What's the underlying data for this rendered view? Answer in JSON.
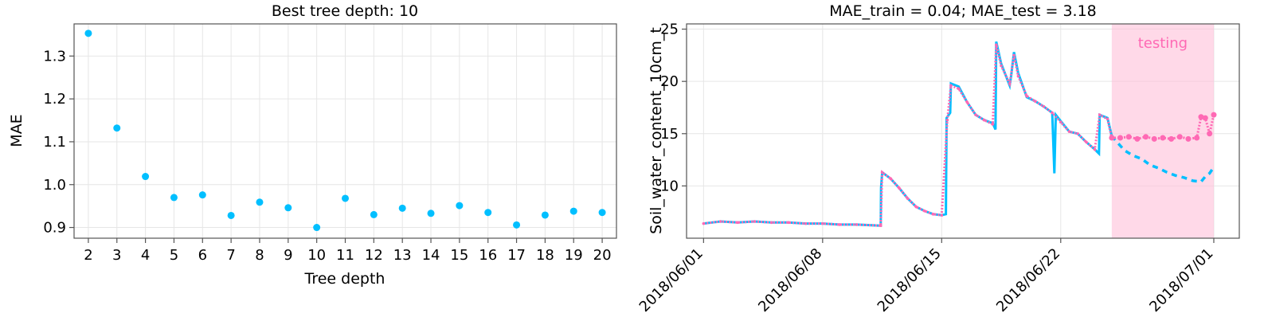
{
  "chart_data": [
    {
      "type": "scatter",
      "title": "Best tree depth: 10",
      "xlabel": "Tree depth",
      "ylabel": "MAE",
      "xlim": [
        1.5,
        20.5
      ],
      "ylim": [
        0.875,
        1.375
      ],
      "x_ticks": [
        "2",
        "3",
        "4",
        "5",
        "6",
        "7",
        "8",
        "9",
        "10",
        "11",
        "12",
        "13",
        "14",
        "15",
        "16",
        "17",
        "18",
        "19",
        "20"
      ],
      "y_ticks": [
        "0.9",
        "1.0",
        "1.1",
        "1.2",
        "1.3"
      ],
      "grid": true,
      "color": "#00bfff",
      "x": [
        2,
        3,
        4,
        5,
        6,
        7,
        8,
        9,
        10,
        11,
        12,
        13,
        14,
        15,
        16,
        17,
        18,
        19,
        20
      ],
      "y": [
        1.353,
        1.132,
        1.019,
        0.97,
        0.976,
        0.928,
        0.959,
        0.946,
        0.9,
        0.968,
        0.93,
        0.945,
        0.933,
        0.951,
        0.935,
        0.906,
        0.929,
        0.938,
        0.935
      ]
    },
    {
      "type": "line",
      "title": "MAE_train = 0.04; MAE_test = 3.18",
      "xlabel": "",
      "ylabel": "Soil_water_content_10cm_t",
      "xlim": [
        "2018-05-31T00:00",
        "2018-07-02T12:00"
      ],
      "ylim": [
        5,
        25.5
      ],
      "x_ticks": [
        "2018/06/01",
        "2018/06/08",
        "2018/06/15",
        "2018/06/22",
        "2018/07/01"
      ],
      "y_ticks": [
        "10",
        "15",
        "20",
        "25"
      ],
      "grid": true,
      "testing_window": {
        "start": "2018-06-25T00:00",
        "end": "2018-07-01T00:00",
        "label": "testing",
        "color": "#ffc0d9"
      },
      "series": [
        {
          "color": "#00bfff",
          "style": "observed, solid in training, dashed in testing",
          "points": [
            [
              "2018-06-01T00:00",
              6.4
            ],
            [
              "2018-06-02T00:00",
              6.6
            ],
            [
              "2018-06-03T00:00",
              6.5
            ],
            [
              "2018-06-04T00:00",
              6.6
            ],
            [
              "2018-06-05T00:00",
              6.5
            ],
            [
              "2018-06-06T00:00",
              6.5
            ],
            [
              "2018-06-07T00:00",
              6.4
            ],
            [
              "2018-06-08T00:00",
              6.4
            ],
            [
              "2018-06-09T00:00",
              6.3
            ],
            [
              "2018-06-10T00:00",
              6.3
            ],
            [
              "2018-06-11T10:00",
              6.2
            ],
            [
              "2018-06-11T10:30",
              9.8
            ],
            [
              "2018-06-11T12:00",
              11.3
            ],
            [
              "2018-06-12T00:00",
              10.7
            ],
            [
              "2018-06-12T12:00",
              9.8
            ],
            [
              "2018-06-13T00:00",
              8.8
            ],
            [
              "2018-06-13T12:00",
              8.0
            ],
            [
              "2018-06-14T00:00",
              7.6
            ],
            [
              "2018-06-14T12:00",
              7.3
            ],
            [
              "2018-06-15T00:00",
              7.2
            ],
            [
              "2018-06-15T06:00",
              7.3
            ],
            [
              "2018-06-15T07:00",
              16.5
            ],
            [
              "2018-06-15T12:00",
              17.0
            ],
            [
              "2018-06-15T13:00",
              19.8
            ],
            [
              "2018-06-16T00:00",
              19.5
            ],
            [
              "2018-06-16T12:00",
              18.0
            ],
            [
              "2018-06-17T00:00",
              16.8
            ],
            [
              "2018-06-17T12:00",
              16.3
            ],
            [
              "2018-06-18T00:00",
              16.0
            ],
            [
              "2018-06-18T04:00",
              15.4
            ],
            [
              "2018-06-18T05:00",
              23.8
            ],
            [
              "2018-06-18T12:00",
              21.7
            ],
            [
              "2018-06-19T00:00",
              19.6
            ],
            [
              "2018-06-19T02:00",
              20.5
            ],
            [
              "2018-06-19T06:00",
              22.8
            ],
            [
              "2018-06-19T12:00",
              20.8
            ],
            [
              "2018-06-20T00:00",
              18.5
            ],
            [
              "2018-06-20T12:00",
              18.1
            ],
            [
              "2018-06-21T00:00",
              17.6
            ],
            [
              "2018-06-21T12:00",
              17.0
            ],
            [
              "2018-06-21T15:00",
              11.2
            ],
            [
              "2018-06-21T17:00",
              16.8
            ],
            [
              "2018-06-22T00:00",
              16.2
            ],
            [
              "2018-06-22T12:00",
              15.2
            ],
            [
              "2018-06-23T00:00",
              15.0
            ],
            [
              "2018-06-23T12:00",
              14.2
            ],
            [
              "2018-06-24T00:00",
              13.5
            ],
            [
              "2018-06-24T06:00",
              13.1
            ],
            [
              "2018-06-24T07:00",
              16.8
            ],
            [
              "2018-06-24T18:00",
              16.5
            ],
            [
              "2018-06-25T00:00",
              14.8
            ],
            [
              "2018-06-25T06:00",
              14.3
            ],
            [
              "2018-06-25T18:00",
              13.4
            ],
            [
              "2018-06-26T06:00",
              12.9
            ],
            [
              "2018-06-26T18:00",
              12.6
            ],
            [
              "2018-06-27T06:00",
              12.0
            ],
            [
              "2018-06-27T18:00",
              11.7
            ],
            [
              "2018-06-28T06:00",
              11.3
            ],
            [
              "2018-06-28T18:00",
              11.0
            ],
            [
              "2018-06-29T06:00",
              10.8
            ],
            [
              "2018-06-29T18:00",
              10.5
            ],
            [
              "2018-06-30T06:00",
              10.4
            ],
            [
              "2018-06-30T12:00",
              10.9
            ],
            [
              "2018-06-30T18:00",
              11.2
            ],
            [
              "2018-07-01T00:00",
              11.8
            ]
          ]
        },
        {
          "color": "#ff69b4",
          "style": "predicted, dotted markers",
          "points": [
            [
              "2018-06-01T00:00",
              6.4
            ],
            [
              "2018-06-02T00:00",
              6.6
            ],
            [
              "2018-06-03T00:00",
              6.5
            ],
            [
              "2018-06-04T00:00",
              6.6
            ],
            [
              "2018-06-05T00:00",
              6.5
            ],
            [
              "2018-06-06T00:00",
              6.5
            ],
            [
              "2018-06-07T00:00",
              6.4
            ],
            [
              "2018-06-08T00:00",
              6.4
            ],
            [
              "2018-06-09T00:00",
              6.3
            ],
            [
              "2018-06-10T00:00",
              6.3
            ],
            [
              "2018-06-11T10:00",
              6.2
            ],
            [
              "2018-06-11T12:00",
              11.3
            ],
            [
              "2018-06-12T00:00",
              10.7
            ],
            [
              "2018-06-12T12:00",
              9.8
            ],
            [
              "2018-06-13T00:00",
              8.8
            ],
            [
              "2018-06-13T12:00",
              8.0
            ],
            [
              "2018-06-14T00:00",
              7.6
            ],
            [
              "2018-06-14T12:00",
              7.3
            ],
            [
              "2018-06-15T00:00",
              7.2
            ],
            [
              "2018-06-15T08:00",
              16.3
            ],
            [
              "2018-06-15T13:00",
              19.6
            ],
            [
              "2018-06-16T00:00",
              19.3
            ],
            [
              "2018-06-16T12:00",
              18.0
            ],
            [
              "2018-06-17T00:00",
              16.8
            ],
            [
              "2018-06-17T12:00",
              16.3
            ],
            [
              "2018-06-18T00:00",
              15.9
            ],
            [
              "2018-06-18T05:00",
              23.5
            ],
            [
              "2018-06-18T12:00",
              21.5
            ],
            [
              "2018-06-19T00:00",
              19.8
            ],
            [
              "2018-06-19T06:00",
              22.5
            ],
            [
              "2018-06-19T12:00",
              20.5
            ],
            [
              "2018-06-20T00:00",
              18.6
            ],
            [
              "2018-06-20T12:00",
              18.1
            ],
            [
              "2018-06-21T00:00",
              17.6
            ],
            [
              "2018-06-21T12:00",
              17.0
            ],
            [
              "2018-06-22T00:00",
              16.1
            ],
            [
              "2018-06-22T12:00",
              15.2
            ],
            [
              "2018-06-23T00:00",
              15.0
            ],
            [
              "2018-06-23T12:00",
              14.2
            ],
            [
              "2018-06-24T00:00",
              13.5
            ],
            [
              "2018-06-24T07:00",
              16.8
            ],
            [
              "2018-06-24T18:00",
              16.4
            ],
            [
              "2018-06-25T00:00",
              14.6
            ],
            [
              "2018-06-25T12:00",
              14.6
            ],
            [
              "2018-06-26T00:00",
              14.7
            ],
            [
              "2018-06-26T12:00",
              14.5
            ],
            [
              "2018-06-27T00:00",
              14.7
            ],
            [
              "2018-06-27T12:00",
              14.5
            ],
            [
              "2018-06-28T00:00",
              14.6
            ],
            [
              "2018-06-28T12:00",
              14.5
            ],
            [
              "2018-06-29T00:00",
              14.7
            ],
            [
              "2018-06-29T12:00",
              14.5
            ],
            [
              "2018-06-30T00:00",
              14.6
            ],
            [
              "2018-06-30T06:00",
              16.6
            ],
            [
              "2018-06-30T12:00",
              16.5
            ],
            [
              "2018-06-30T18:00",
              15.0
            ],
            [
              "2018-07-01T00:00",
              16.8
            ]
          ]
        }
      ]
    }
  ]
}
